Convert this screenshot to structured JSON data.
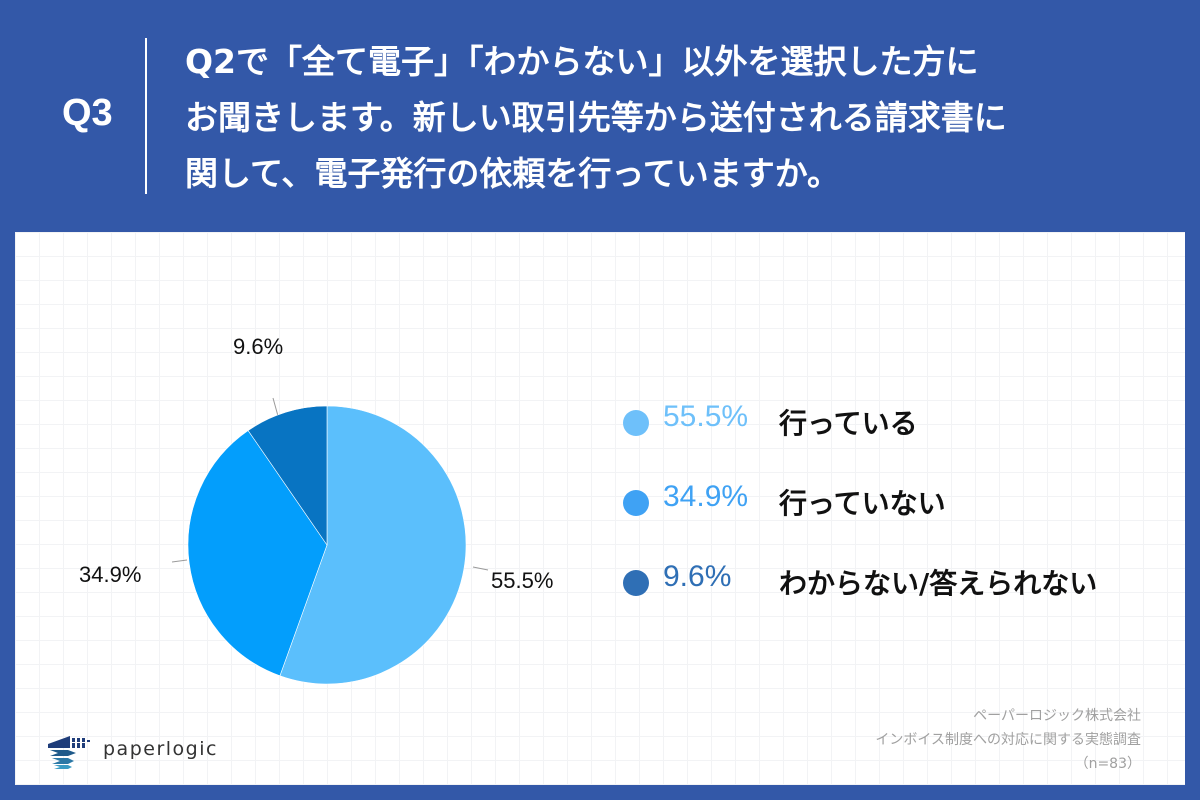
{
  "header": {
    "question_number": "Q3",
    "question_lines": [
      "Q2で「全て電子」「わからない」以外を選択した方に",
      "お聞きします。新しい取引先等から送付される請求書に",
      "関して、電子発行の依頼を行っていますか。"
    ]
  },
  "colors": {
    "background": "#3358a8",
    "slice_doing": "#5bbffc",
    "slice_not_doing": "#039efc",
    "slice_unknown": "#0874c2",
    "legend_doing": "#6ec0fa",
    "legend_not_doing": "#3fa2f4",
    "legend_unknown": "#2f6fb5"
  },
  "chart_data": {
    "type": "pie",
    "title": "Q2で「全て電子」「わからない」以外を選択した方にお聞きします。新しい取引先等から送付される請求書に関して、電子発行の依頼を行っていますか。",
    "categories": [
      "行っている",
      "行っていない",
      "わからない/答えられない"
    ],
    "values": [
      55.5,
      34.9,
      9.6
    ],
    "unit": "%",
    "slice_labels": [
      "55.5%",
      "34.9%",
      "9.6%"
    ],
    "start_angle": "12 o'clock, clockwise",
    "legend_position": "right",
    "n": 83
  },
  "legend": [
    {
      "pct": "55.5%",
      "label": "行っている"
    },
    {
      "pct": "34.9%",
      "label": "行っていない"
    },
    {
      "pct": "9.6%",
      "label": "わからない/答えられない"
    }
  ],
  "pie_labels": {
    "doing": "55.5%",
    "not_doing": "34.9%",
    "unknown": "9.6%"
  },
  "footer": {
    "logo_text": "paperlogic",
    "source_company": "ペーパーロジック株式会社",
    "source_survey": "インボイス制度への対応に関する実態調査",
    "sample_size": "（n=83）"
  }
}
